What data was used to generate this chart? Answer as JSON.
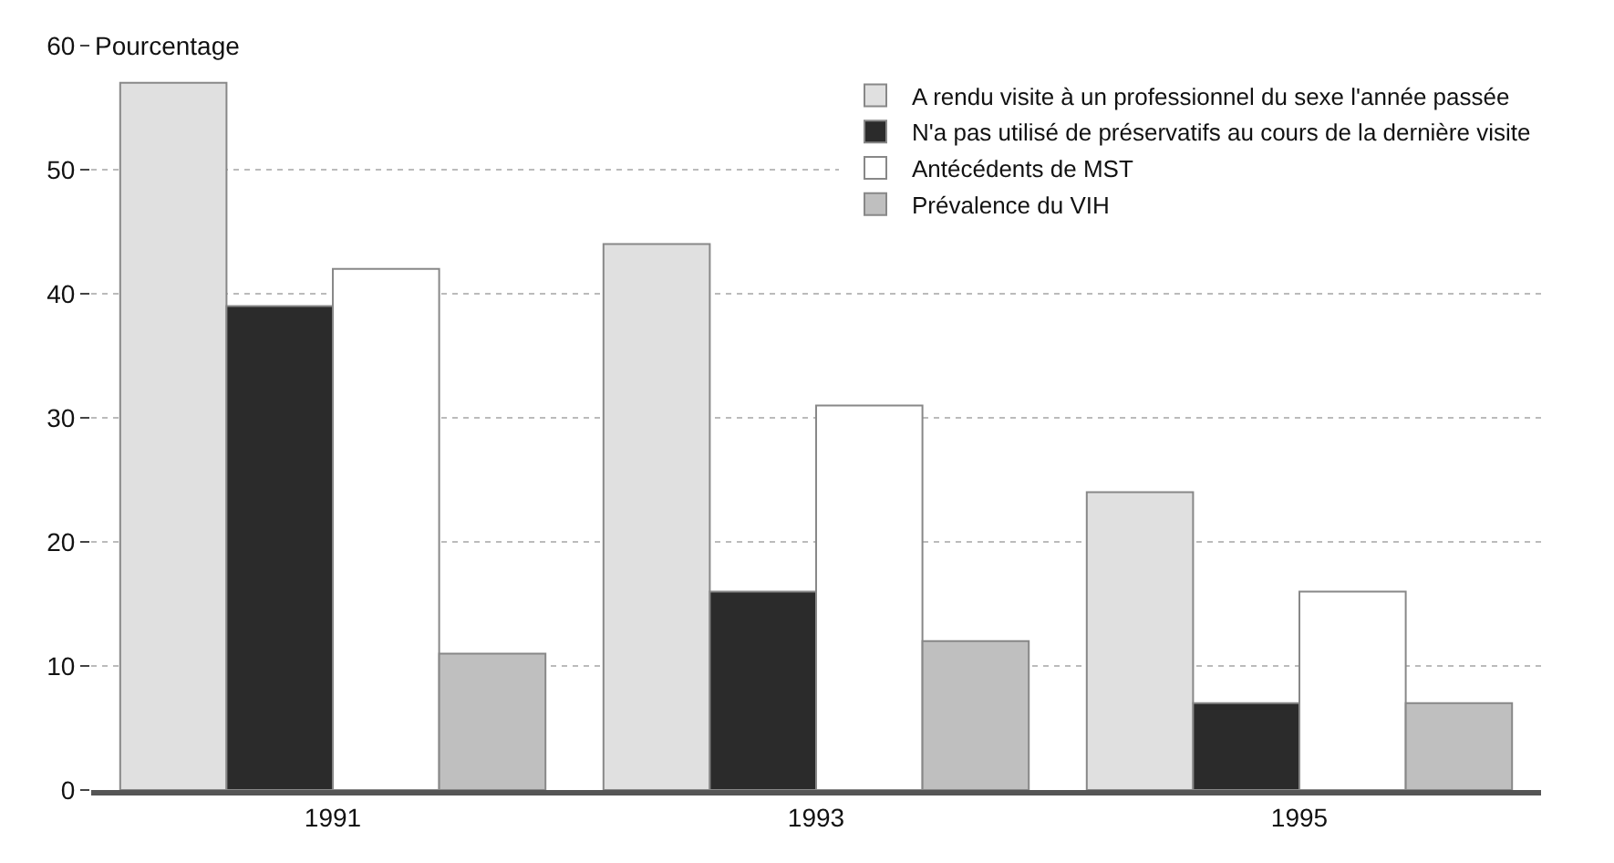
{
  "chart_data": {
    "type": "bar",
    "ylabel": "Pourcentage",
    "categories": [
      "1991",
      "1993",
      "1995"
    ],
    "series": [
      {
        "name": "A rendu visite à un professionnel du sexe l'année passée",
        "color": "#e0e0e0",
        "values": [
          57,
          44,
          24
        ]
      },
      {
        "name": "N'a pas utilisé de préservatifs au cours de la dernière visite",
        "color": "#2b2b2b",
        "values": [
          39,
          16,
          7
        ]
      },
      {
        "name": "Antécédents de MST",
        "color": "#ffffff",
        "values": [
          42,
          31,
          16
        ]
      },
      {
        "name": "Prévalence du VIH",
        "color": "#bfbfbf",
        "values": [
          11,
          12,
          7
        ]
      }
    ],
    "ylim": [
      0,
      60
    ],
    "yticks": [
      0,
      10,
      20,
      30,
      40,
      50,
      60
    ],
    "grid": "y",
    "legend": "top right"
  }
}
